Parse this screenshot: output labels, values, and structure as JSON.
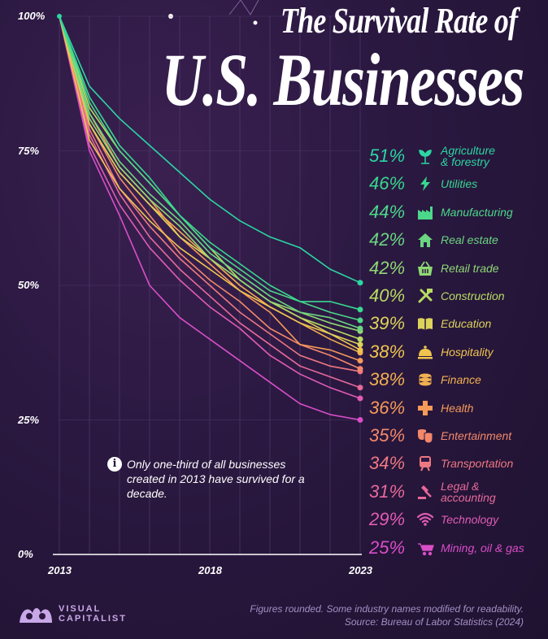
{
  "header": {
    "title_top": "The Survival Rate of",
    "title_main": "U.S. Businesses"
  },
  "note": {
    "icon": "info-icon",
    "text": "Only one-third of all businesses created in 2013 have survived for a decade."
  },
  "footer": {
    "logo_text": "VISUAL\nCAPITALIST",
    "note": "Figures rounded. Some industry names modified for readability.",
    "source": "Source: Bureau of Labor Statistics (2024)"
  },
  "chart_data": {
    "type": "line",
    "x": [
      2013,
      2014,
      2015,
      2016,
      2017,
      2018,
      2019,
      2020,
      2021,
      2022,
      2023
    ],
    "x_tick_labels": [
      "2013",
      "2018",
      "2023"
    ],
    "x_ticks": [
      2013,
      2018,
      2023
    ],
    "y_tick_labels": [
      "0%",
      "25%",
      "50%",
      "75%",
      "100%"
    ],
    "y_ticks": [
      0,
      25,
      50,
      75,
      100
    ],
    "ylim": [
      0,
      100
    ],
    "grid": true,
    "legend_placement": "right",
    "series": [
      {
        "name": "Agriculture\n& forestry",
        "label": "51%",
        "icon": "sprout-icon",
        "color": "#2bd6a2",
        "values": [
          100,
          87,
          81,
          76,
          71,
          66,
          62,
          59,
          57,
          53,
          50.5
        ]
      },
      {
        "name": "Utilities",
        "label": "46%",
        "icon": "lightning-icon",
        "color": "#36d98e",
        "values": [
          100,
          85,
          76,
          70,
          63,
          58,
          54,
          50,
          47,
          47,
          45.5
        ]
      },
      {
        "name": "Manufacturing",
        "label": "44%",
        "icon": "factory-icon",
        "color": "#4cd88a",
        "values": [
          100,
          84,
          75,
          69,
          63,
          57,
          53,
          49,
          47,
          45,
          43.5
        ]
      },
      {
        "name": "Real estate",
        "label": "42%",
        "icon": "house-icon",
        "color": "#6ad680",
        "values": [
          100,
          82,
          73,
          67,
          62,
          56,
          52,
          48,
          45,
          44,
          42
        ]
      },
      {
        "name": "Retail trade",
        "label": "42%",
        "icon": "basket-icon",
        "color": "#8ed874",
        "values": [
          100,
          81,
          72,
          66,
          61,
          55,
          51,
          47,
          45,
          43,
          41.5
        ]
      },
      {
        "name": "Construction",
        "label": "40%",
        "icon": "tools-icon",
        "color": "#b8dc62",
        "values": [
          100,
          83,
          75,
          69,
          63,
          57,
          51,
          47,
          44,
          42,
          40
        ]
      },
      {
        "name": "Education",
        "label": "39%",
        "icon": "book-icon",
        "color": "#dcd35a",
        "values": [
          100,
          80,
          71,
          65,
          59,
          55,
          51,
          47,
          44,
          41,
          39
        ]
      },
      {
        "name": "Hospitality",
        "label": "38%",
        "icon": "bell-icon",
        "color": "#f0c54e",
        "values": [
          100,
          77,
          68,
          62,
          57,
          53,
          49,
          46,
          43,
          41,
          38
        ]
      },
      {
        "name": "Finance",
        "label": "38%",
        "icon": "coins-icon",
        "color": "#f3b050",
        "values": [
          100,
          80,
          71,
          65,
          60,
          55,
          50,
          46,
          43,
          40,
          37.5
        ]
      },
      {
        "name": "Health",
        "label": "36%",
        "icon": "cross-icon",
        "color": "#f59a58",
        "values": [
          100,
          82,
          72,
          66,
          59,
          54,
          49,
          45,
          39,
          38,
          36
        ]
      },
      {
        "name": "Entertainment",
        "label": "35%",
        "icon": "masks-icon",
        "color": "#f3886a",
        "values": [
          100,
          80,
          70,
          63,
          56,
          51,
          47,
          42,
          39,
          37,
          34.5
        ]
      },
      {
        "name": "Transportation",
        "label": "34%",
        "icon": "train-icon",
        "color": "#ee7882",
        "values": [
          100,
          79,
          68,
          61,
          55,
          50,
          45,
          41,
          37,
          35,
          34
        ]
      },
      {
        "name": "Legal &\naccounting",
        "label": "31%",
        "icon": "gavel-icon",
        "color": "#e66a9a",
        "values": [
          100,
          78,
          67,
          59,
          53,
          48,
          43,
          39,
          35,
          33,
          31
        ]
      },
      {
        "name": "Technology",
        "label": "29%",
        "icon": "wifi-icon",
        "color": "#e05cb4",
        "values": [
          100,
          76,
          65,
          57,
          51,
          46,
          42,
          37,
          33.5,
          31,
          29
        ]
      },
      {
        "name": "Mining, oil & gas",
        "label": "25%",
        "icon": "wheelbarrow-icon",
        "color": "#d94ec8",
        "values": [
          100,
          75,
          63,
          50,
          44,
          40,
          36,
          32,
          28,
          26,
          25
        ]
      }
    ]
  }
}
